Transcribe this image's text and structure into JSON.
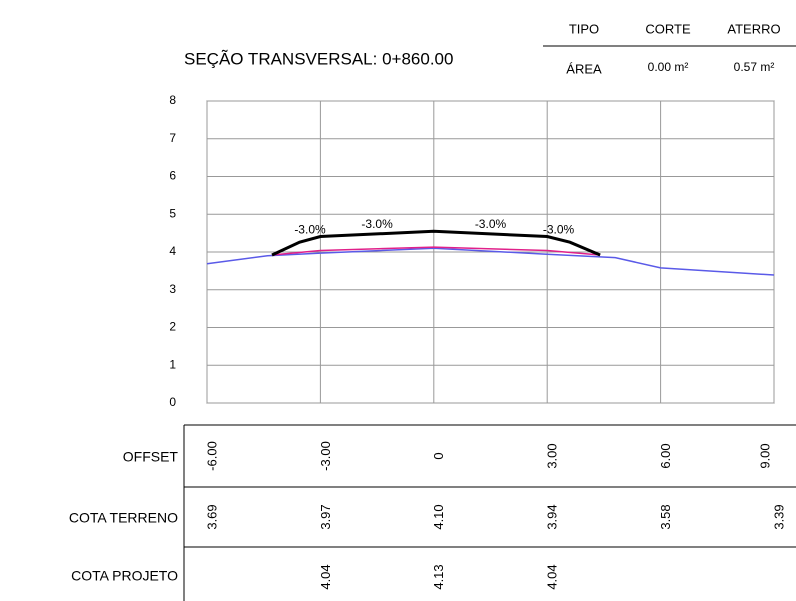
{
  "chart_data": {
    "type": "line",
    "title": "SEÇÃO TRANSVERSAL: 0+860.00",
    "area_table": {
      "header": [
        "TIPO",
        "CORTE",
        "ATERRO"
      ],
      "row": [
        "ÁREA",
        "0.00 m²",
        "0.57 m²"
      ]
    },
    "row_labels": [
      "OFFSET",
      "COTA TERRENO",
      "COTA PROJETO"
    ],
    "xlim": [
      -6,
      9
    ],
    "xticks": [
      {
        "value": -6,
        "label": "-6.00"
      },
      {
        "value": -3,
        "label": "-3.00"
      },
      0,
      {
        "value": 3,
        "label": "3.00"
      },
      {
        "value": 6,
        "label": "6.00"
      },
      {
        "value": 9,
        "label": "9.00"
      }
    ],
    "ylim": [
      0,
      8
    ],
    "yticks": [
      0,
      1,
      2,
      3,
      4,
      5,
      6,
      7,
      8
    ],
    "grid": true,
    "series": [
      {
        "color": "#5a5ae8",
        "x": [
          -6,
          -4.4,
          -3,
          0,
          3,
          4.8,
          6,
          9
        ],
        "values": [
          3.69,
          3.9,
          3.97,
          4.1,
          3.94,
          3.85,
          3.58,
          3.39
        ],
        "value_labels": [
          "3.69",
          null,
          "3.97",
          "4.10",
          "3.94",
          null,
          "3.58",
          "3.39"
        ]
      },
      {
        "color": "#e0208a",
        "x": [
          -4.28,
          -3,
          0,
          3,
          4.4
        ],
        "values": [
          3.92,
          4.04,
          4.13,
          4.04,
          3.92
        ],
        "value_labels": [
          null,
          "4.04",
          "4.13",
          "4.04",
          null
        ]
      },
      {
        "color": "#000000",
        "x": [
          -4.28,
          -3.55,
          -3,
          0,
          3,
          3.6,
          4.4
        ],
        "values": [
          3.92,
          4.26,
          4.41,
          4.55,
          4.41,
          4.26,
          3.92
        ]
      }
    ],
    "annotations": [
      "-3.0%",
      "-3.0%",
      "-3.0%",
      "-3.0%"
    ]
  }
}
